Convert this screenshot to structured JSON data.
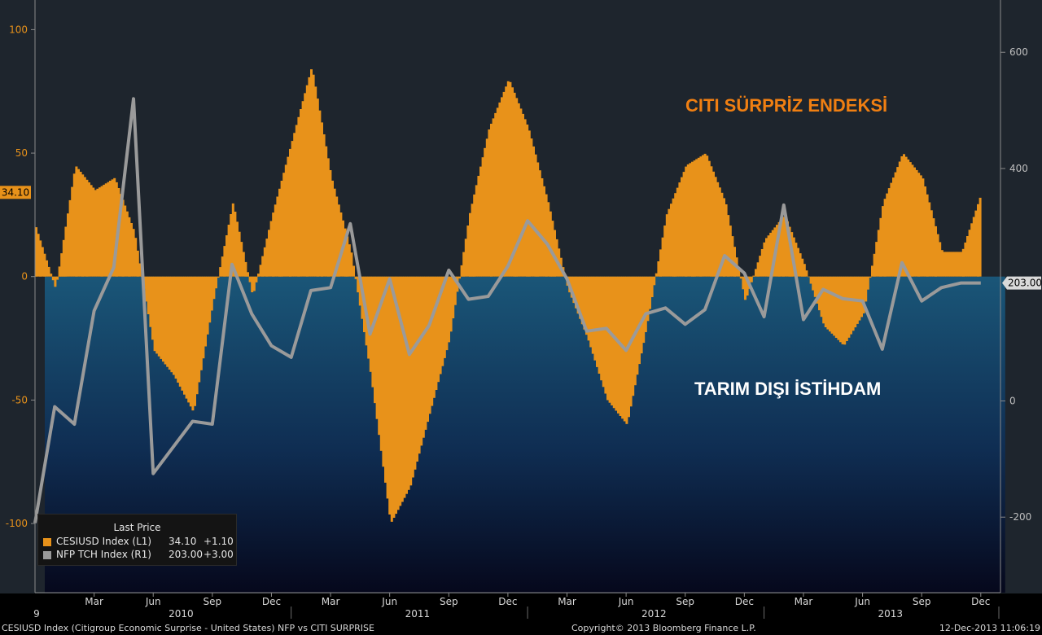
{
  "chart_data": {
    "type": "bar+line",
    "title": "",
    "series": [
      {
        "name": "CESIUSD Index (L1)",
        "type": "bar",
        "axis": "left",
        "color": "#e8921a",
        "x": [
          "2009-12",
          "2010-01",
          "2010-02",
          "2010-03",
          "2010-04",
          "2010-05",
          "2010-06",
          "2010-07",
          "2010-08",
          "2010-09",
          "2010-10",
          "2010-11",
          "2010-12",
          "2011-01",
          "2011-02",
          "2011-03",
          "2011-04",
          "2011-05",
          "2011-06",
          "2011-07",
          "2011-08",
          "2011-09",
          "2011-10",
          "2011-11",
          "2011-12",
          "2012-01",
          "2012-02",
          "2012-03",
          "2012-04",
          "2012-05",
          "2012-06",
          "2012-07",
          "2012-08",
          "2012-09",
          "2012-10",
          "2012-11",
          "2012-12",
          "2013-01",
          "2013-02",
          "2013-03",
          "2013-04",
          "2013-05",
          "2013-06",
          "2013-07",
          "2013-08",
          "2013-09",
          "2013-10",
          "2013-11",
          "2013-12"
        ],
        "values": [
          20,
          -5,
          45,
          35,
          40,
          18,
          -30,
          -40,
          -55,
          -10,
          30,
          -8,
          25,
          55,
          85,
          40,
          10,
          -40,
          -100,
          -85,
          -55,
          -25,
          25,
          60,
          80,
          60,
          30,
          -5,
          -25,
          -50,
          -60,
          -20,
          25,
          45,
          50,
          30,
          -10,
          15,
          25,
          5,
          -20,
          -28,
          -15,
          30,
          50,
          40,
          10,
          10,
          34.1
        ]
      },
      {
        "name": "NFP TCH Index (R1)",
        "type": "line",
        "axis": "right",
        "color": "#9a9a9a",
        "x": [
          "2009-12",
          "2010-01",
          "2010-02",
          "2010-03",
          "2010-04",
          "2010-05",
          "2010-06",
          "2010-07",
          "2010-08",
          "2010-09",
          "2010-10",
          "2010-11",
          "2010-12",
          "2011-01",
          "2011-02",
          "2011-03",
          "2011-04",
          "2011-05",
          "2011-06",
          "2011-07",
          "2011-08",
          "2011-09",
          "2011-10",
          "2011-11",
          "2011-12",
          "2012-01",
          "2012-02",
          "2012-03",
          "2012-04",
          "2012-05",
          "2012-06",
          "2012-07",
          "2012-08",
          "2012-09",
          "2012-10",
          "2012-11",
          "2012-12",
          "2013-01",
          "2013-02",
          "2013-03",
          "2013-04",
          "2013-05",
          "2013-06",
          "2013-07",
          "2013-08",
          "2013-09",
          "2013-10",
          "2013-11",
          "2013-12"
        ],
        "values": [
          -210,
          -10,
          -40,
          155,
          230,
          520,
          -125,
          -80,
          -35,
          -40,
          235,
          150,
          95,
          75,
          190,
          195,
          305,
          115,
          210,
          80,
          130,
          225,
          175,
          180,
          232,
          310,
          270,
          210,
          120,
          125,
          87,
          150,
          160,
          132,
          157,
          250,
          220,
          145,
          337,
          140,
          192,
          176,
          172,
          89,
          238,
          172,
          195,
          203,
          203
        ]
      }
    ],
    "y_left": {
      "ylim": [
        -128,
        112
      ],
      "ticks": [
        100,
        50,
        0,
        -50,
        -100
      ]
    },
    "y_right": {
      "ylim": [
        -330,
        690
      ],
      "ticks": [
        600,
        400,
        0,
        -200
      ]
    },
    "x_axis": {
      "month_ticks": [
        {
          "label": "Mar",
          "date": "2010-03"
        },
        {
          "label": "Jun",
          "date": "2010-06"
        },
        {
          "label": "Sep",
          "date": "2010-09"
        },
        {
          "label": "Dec",
          "date": "2010-12"
        },
        {
          "label": "Mar",
          "date": "2011-03"
        },
        {
          "label": "Jun",
          "date": "2011-06"
        },
        {
          "label": "Sep",
          "date": "2011-09"
        },
        {
          "label": "Dec",
          "date": "2011-12"
        },
        {
          "label": "Mar",
          "date": "2012-03"
        },
        {
          "label": "Jun",
          "date": "2012-06"
        },
        {
          "label": "Sep",
          "date": "2012-09"
        },
        {
          "label": "Dec",
          "date": "2012-12"
        },
        {
          "label": "Mar",
          "date": "2013-03"
        },
        {
          "label": "Jun",
          "date": "2013-06"
        },
        {
          "label": "Sep",
          "date": "2013-09"
        },
        {
          "label": "Dec",
          "date": "2013-12"
        }
      ],
      "year_labels": [
        {
          "label": "9",
          "date": "2009-12"
        },
        {
          "label": "2010",
          "date": "2010-07"
        },
        {
          "label": "2011",
          "date": "2011-07"
        },
        {
          "label": "2012",
          "date": "2012-07"
        },
        {
          "label": "2013",
          "date": "2013-07"
        }
      ]
    },
    "tags": {
      "left_value": "34.10",
      "right_value": "203.00"
    },
    "annotations": {
      "cesi": "CITI SÜRPRİZ ENDEKSİ",
      "nfp": "TARIM DIŞI İSTİHDAM"
    },
    "legend": {
      "title": "Last Price",
      "entries": [
        {
          "name": "CESIUSD Index  (L1)",
          "price": "34.10",
          "change": "+1.10",
          "color": "#e8921a"
        },
        {
          "name": "NFP TCH Index  (R1)",
          "price": "203.00",
          "change": "+3.00",
          "color": "#9a9a9a"
        }
      ]
    },
    "colors": {
      "background": "#1e252d",
      "fill_top": "#1a5678",
      "fill_bottom": "#06081c",
      "axis_text": "#e8921a",
      "right_axis_text": "#bfbfbf"
    }
  },
  "footer": {
    "left": "CESIUSD Index (Citigroup Economic Surprise - United States) NFP vs CITI SURPRISE",
    "center": "Copyright© 2013 Bloomberg Finance L.P.",
    "right": "12-Dec-2013 11:06:19"
  }
}
